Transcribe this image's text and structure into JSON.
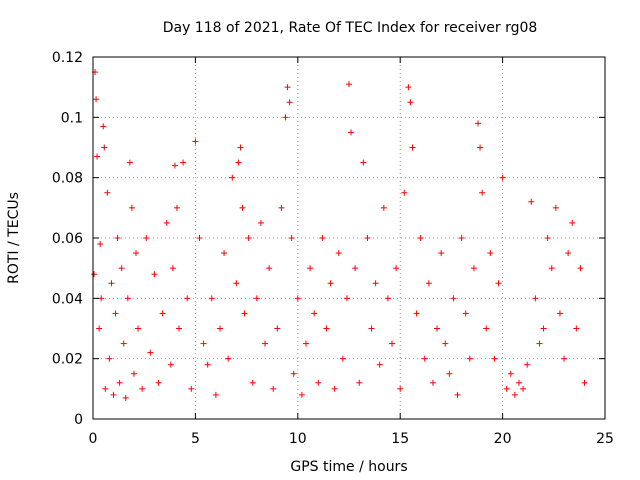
{
  "chart_data": {
    "type": "scatter",
    "title": "Day 118 of 2021, Rate Of TEC Index for receiver rg08",
    "xlabel": "GPS time / hours",
    "ylabel": "ROTI / TECUs",
    "xlim": [
      0,
      25
    ],
    "ylim": [
      0,
      0.12
    ],
    "x_ticks": [
      0,
      5,
      10,
      15,
      20,
      25
    ],
    "y_ticks": [
      0,
      0.02,
      0.04,
      0.06,
      0.08,
      0.1,
      0.12
    ],
    "x_tick_labels": [
      "0",
      "5",
      "10",
      "15",
      "20",
      "25"
    ],
    "y_tick_labels": [
      "0",
      "0.02",
      "0.04",
      "0.06",
      "0.08",
      "0.1",
      "0.12"
    ],
    "grid": true,
    "marker": "plus",
    "series_color": "#ff0000",
    "series": [
      {
        "x": [
          0.05,
          0.1,
          0.15,
          0.2,
          0.3,
          0.35,
          0.4,
          0.5,
          0.55,
          0.6,
          0.7,
          0.8,
          0.9,
          1.0,
          1.1,
          1.2,
          1.3,
          1.4,
          1.5,
          1.6,
          1.7,
          1.8,
          1.9,
          2.0,
          2.1,
          2.2,
          2.4,
          2.6,
          2.8,
          3.0,
          3.2,
          3.4,
          3.6,
          3.8,
          3.9,
          4.0,
          4.1,
          4.2,
          4.4,
          4.6,
          4.8,
          5.0,
          5.2,
          5.4,
          5.6,
          5.8,
          6.0,
          6.2,
          6.4,
          6.6,
          6.8,
          7.0,
          7.1,
          7.2,
          7.3,
          7.4,
          7.6,
          7.8,
          8.0,
          8.2,
          8.4,
          8.6,
          8.8,
          9.0,
          9.2,
          9.4,
          9.5,
          9.6,
          9.7,
          9.8,
          10.0,
          10.2,
          10.4,
          10.6,
          10.8,
          11.0,
          11.2,
          11.4,
          11.6,
          11.8,
          12.0,
          12.2,
          12.4,
          12.5,
          12.6,
          12.8,
          13.0,
          13.2,
          13.4,
          13.6,
          13.8,
          14.0,
          14.2,
          14.4,
          14.6,
          14.8,
          15.0,
          15.2,
          15.4,
          15.5,
          15.6,
          15.8,
          16.0,
          16.2,
          16.4,
          16.6,
          16.8,
          17.0,
          17.2,
          17.4,
          17.6,
          17.8,
          18.0,
          18.2,
          18.4,
          18.6,
          18.8,
          18.9,
          19.0,
          19.2,
          19.4,
          19.6,
          19.8,
          20.0,
          20.2,
          20.4,
          20.6,
          20.8,
          21.0,
          21.2,
          21.4,
          21.6,
          21.8,
          22.0,
          22.2,
          22.4,
          22.6,
          22.8,
          23.0,
          23.2,
          23.4,
          23.6,
          23.8,
          24.0
        ],
        "y": [
          0.048,
          0.115,
          0.106,
          0.087,
          0.03,
          0.058,
          0.04,
          0.097,
          0.09,
          0.01,
          0.075,
          0.02,
          0.045,
          0.008,
          0.035,
          0.06,
          0.012,
          0.05,
          0.025,
          0.007,
          0.04,
          0.085,
          0.07,
          0.015,
          0.055,
          0.03,
          0.01,
          0.06,
          0.022,
          0.048,
          0.012,
          0.035,
          0.065,
          0.018,
          0.05,
          0.084,
          0.07,
          0.03,
          0.085,
          0.04,
          0.01,
          0.092,
          0.06,
          0.025,
          0.018,
          0.04,
          0.008,
          0.03,
          0.055,
          0.02,
          0.08,
          0.045,
          0.085,
          0.09,
          0.07,
          0.035,
          0.06,
          0.012,
          0.04,
          0.065,
          0.025,
          0.05,
          0.01,
          0.03,
          0.07,
          0.1,
          0.11,
          0.105,
          0.06,
          0.015,
          0.04,
          0.008,
          0.025,
          0.05,
          0.035,
          0.012,
          0.06,
          0.03,
          0.045,
          0.01,
          0.055,
          0.02,
          0.04,
          0.111,
          0.095,
          0.05,
          0.012,
          0.085,
          0.06,
          0.03,
          0.045,
          0.018,
          0.07,
          0.04,
          0.025,
          0.05,
          0.01,
          0.075,
          0.11,
          0.105,
          0.09,
          0.035,
          0.06,
          0.02,
          0.045,
          0.012,
          0.03,
          0.055,
          0.025,
          0.015,
          0.04,
          0.008,
          0.06,
          0.035,
          0.02,
          0.05,
          0.098,
          0.09,
          0.075,
          0.03,
          0.055,
          0.02,
          0.045,
          0.08,
          0.01,
          0.015,
          0.008,
          0.012,
          0.01,
          0.018,
          0.072,
          0.04,
          0.025,
          0.03,
          0.06,
          0.05,
          0.07,
          0.035,
          0.02,
          0.055,
          0.065,
          0.03,
          0.05,
          0.012
        ]
      }
    ]
  }
}
